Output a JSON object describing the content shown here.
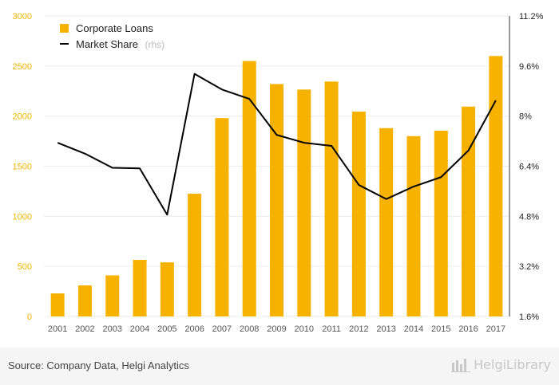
{
  "chart_data": {
    "type": "bar",
    "categories": [
      "2001",
      "2002",
      "2003",
      "2004",
      "2005",
      "2006",
      "2007",
      "2008",
      "2009",
      "2010",
      "2011",
      "2012",
      "2013",
      "2014",
      "2015",
      "2016",
      "2017"
    ],
    "series": [
      {
        "name": "Corporate Loans",
        "type": "bar",
        "axis": "left",
        "color": "#f7b200",
        "values": [
          230,
          310,
          410,
          565,
          540,
          1225,
          1980,
          2550,
          2320,
          2265,
          2345,
          2045,
          1880,
          1800,
          1855,
          2095,
          2600
        ]
      },
      {
        "name": "Market Share",
        "name_suffix": "(rhs)",
        "type": "line",
        "axis": "right",
        "color": "#000000",
        "values": [
          7.15,
          6.8,
          6.35,
          6.33,
          4.85,
          9.35,
          8.85,
          8.55,
          7.4,
          7.15,
          7.05,
          5.8,
          5.35,
          5.75,
          6.05,
          6.9,
          8.5
        ]
      }
    ],
    "y_left": {
      "ylim": [
        0,
        3000
      ],
      "ticks": [
        "0",
        "500",
        "1000",
        "1500",
        "2000",
        "2500",
        "3000"
      ],
      "values": [
        0,
        500,
        1000,
        1500,
        2000,
        2500,
        3000
      ]
    },
    "y_right": {
      "ylim": [
        1.6,
        11.2
      ],
      "ticks": [
        "1.6%",
        "3.2%",
        "4.8%",
        "6.4%",
        "8%",
        "9.6%",
        "11.2%"
      ],
      "values": [
        1.6,
        3.2,
        4.8,
        6.4,
        8.0,
        9.6,
        11.2
      ]
    },
    "grid": true,
    "legend": "top-left",
    "title": "",
    "xlabel": "",
    "ylabel": ""
  },
  "footer": {
    "source": "Source: Company Data, Helgi Analytics",
    "brand": "HelgiLibrary"
  },
  "colors": {
    "accent": "#f7b200",
    "line": "#000000",
    "grid": "#ececec"
  }
}
